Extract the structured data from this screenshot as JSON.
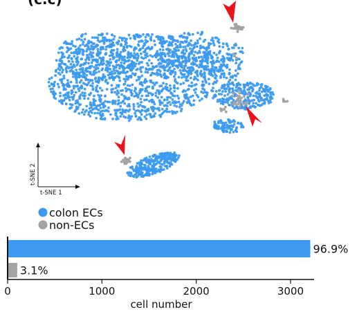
{
  "header_partial": "(c.c)",
  "colors": {
    "colon_ecs": "#3d9af0",
    "non_ecs": "#a3a3a3",
    "arrow": "#e8131b",
    "axis": "#111111"
  },
  "tsne": {
    "x_axis_label": "t-SNE 1",
    "y_axis_label": "t-SNE 2",
    "arrow_count": 3
  },
  "legend": {
    "items": [
      {
        "label": "colon ECs",
        "color": "#3d9af0"
      },
      {
        "label": "non-ECs",
        "color": "#a3a3a3"
      }
    ]
  },
  "chart_data": [
    {
      "type": "scatter",
      "title": "",
      "xlabel": "t-SNE 1",
      "ylabel": "t-SNE 2",
      "series": [
        {
          "name": "colon ECs",
          "color": "#3d9af0",
          "note_share_percent": 96.9
        },
        {
          "name": "non-ECs",
          "color": "#a3a3a3",
          "note_share_percent": 3.1
        }
      ]
    },
    {
      "type": "bar",
      "orientation": "horizontal",
      "categories": [
        "colon ECs",
        "non-ECs"
      ],
      "values": [
        3210,
        102
      ],
      "data_labels": [
        "96.9%",
        "3.1%"
      ],
      "xlabel": "cell number",
      "ylabel": "",
      "xlim": [
        0,
        3250
      ],
      "xticks": [
        0,
        1000,
        2000,
        3000
      ],
      "colors": [
        "#3d9af0",
        "#a3a3a3"
      ]
    }
  ]
}
